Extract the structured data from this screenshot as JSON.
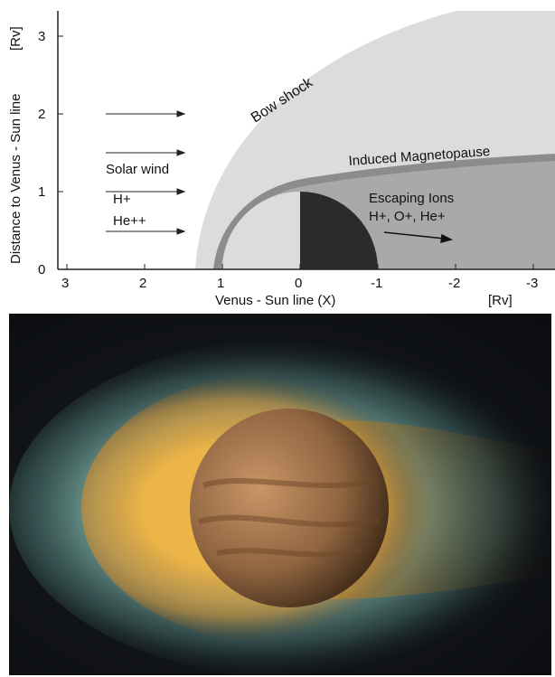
{
  "diagram": {
    "y_axis_label": "Distance to Venus - Sun line",
    "y_axis_unit": "[Rv]",
    "x_axis_label": "Venus - Sun line (X)",
    "x_axis_unit": "[Rv]",
    "x_ticks": [
      "3",
      "2",
      "1",
      "0",
      "-1",
      "-2",
      "-3"
    ],
    "y_ticks": [
      "0",
      "1",
      "2",
      "3"
    ],
    "labels": {
      "bow_shock": "Bow shock",
      "induced_magnetopause": "Induced Magnetopause",
      "solar_wind": "Solar wind",
      "h_plus": "H+",
      "he_plus_plus": "He++",
      "escaping_ions": "Escaping Ions",
      "escaping_species": "H+, O+, He+"
    },
    "colors": {
      "bow_shock_region": "#dcdcdc",
      "magnetosheath_tail": "#a9a9a9",
      "magnetopause_band": "#8f8f8f",
      "venus_day_side": "#dcdcdc",
      "venus_night_side": "#2b2b2b"
    }
  },
  "illustration": {
    "subject": "Venus with induced magnetosphere glow",
    "colors": {
      "background": "#0b0d10",
      "outer_glow": "#6fa59a",
      "inner_glow": "#e8a437",
      "planet": "#b07b4d"
    }
  }
}
